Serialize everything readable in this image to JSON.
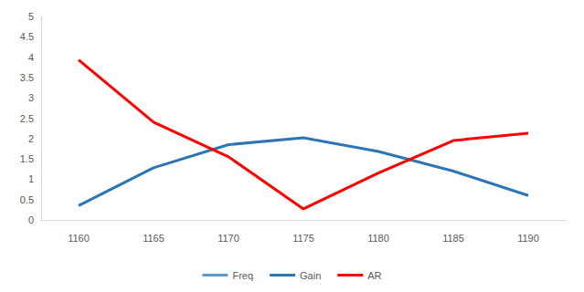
{
  "chart_data": {
    "type": "line",
    "categories": [
      "1160",
      "1165",
      "1170",
      "1175",
      "1180",
      "1185",
      "1190"
    ],
    "series": [
      {
        "name": "Freq",
        "color": "#5b9bd5",
        "values": [
          null,
          null,
          null,
          null,
          null,
          null,
          null
        ]
      },
      {
        "name": "Gain",
        "color": "#2e75b6",
        "values": [
          0.35,
          1.28,
          1.85,
          2.02,
          1.68,
          1.2,
          0.6
        ]
      },
      {
        "name": "AR",
        "color": "#ff0000",
        "values": [
          3.93,
          2.4,
          1.55,
          0.27,
          1.15,
          1.95,
          2.13
        ]
      }
    ],
    "ylim": [
      0,
      5
    ],
    "yticks": [
      0,
      0.5,
      1,
      1.5,
      2,
      2.5,
      3,
      3.5,
      4,
      4.5,
      5
    ],
    "grid": false,
    "legend": "bottom"
  }
}
